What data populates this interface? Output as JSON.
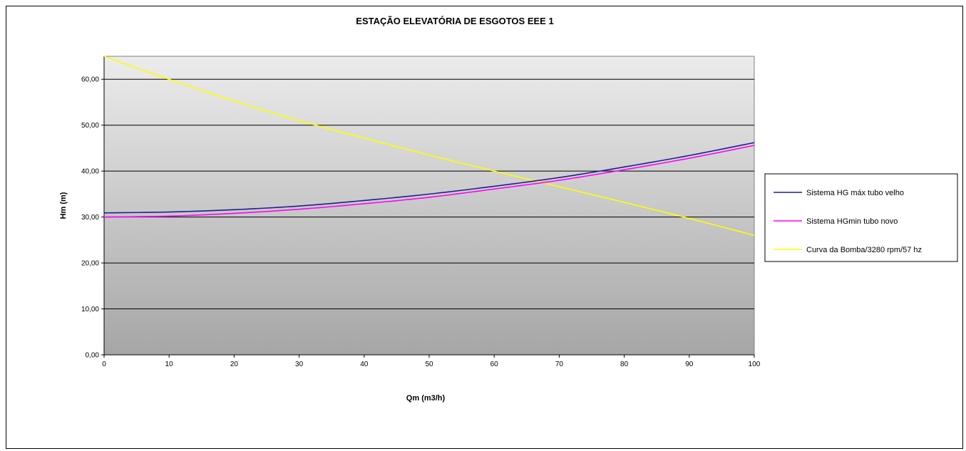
{
  "chart_data": {
    "type": "line",
    "title": "ESTAÇÃO ELEVATÓRIA DE ESGOTOS EEE  1",
    "xlabel": "Qm (m3/h)",
    "ylabel": "Hm (m)",
    "xlim": [
      0,
      100
    ],
    "ylim": [
      0,
      65
    ],
    "x_ticks": [
      "0",
      "10",
      "20",
      "30",
      "40",
      "50",
      "60",
      "70",
      "80",
      "90",
      "100"
    ],
    "y_ticks": [
      "0,00",
      "10,00",
      "20,00",
      "30,00",
      "40,00",
      "50,00",
      "60,00"
    ],
    "grid": "horizontal",
    "legend_position": "right",
    "x": [
      0,
      10,
      20,
      30,
      40,
      50,
      60,
      70,
      80,
      90,
      100
    ],
    "series": [
      {
        "name": "Sistema HG máx tubo velho",
        "color": "#1f1f8f",
        "values": [
          30.9,
          31.1,
          31.6,
          32.4,
          33.6,
          35.0,
          36.7,
          38.6,
          40.9,
          43.4,
          46.2
        ]
      },
      {
        "name": "Sistema HGmin tubo novo",
        "color": "#ff00ff",
        "values": [
          30.0,
          30.2,
          30.8,
          31.7,
          32.9,
          34.3,
          36.1,
          38.0,
          40.3,
          42.8,
          45.6
        ]
      },
      {
        "name": "Curva da Bomba/3280 rpm/57 hz",
        "color": "#ffff00",
        "values": [
          65.0,
          60.0,
          55.3,
          51.0,
          47.2,
          43.5,
          40.0,
          36.6,
          33.2,
          29.7,
          26.0
        ]
      }
    ]
  }
}
